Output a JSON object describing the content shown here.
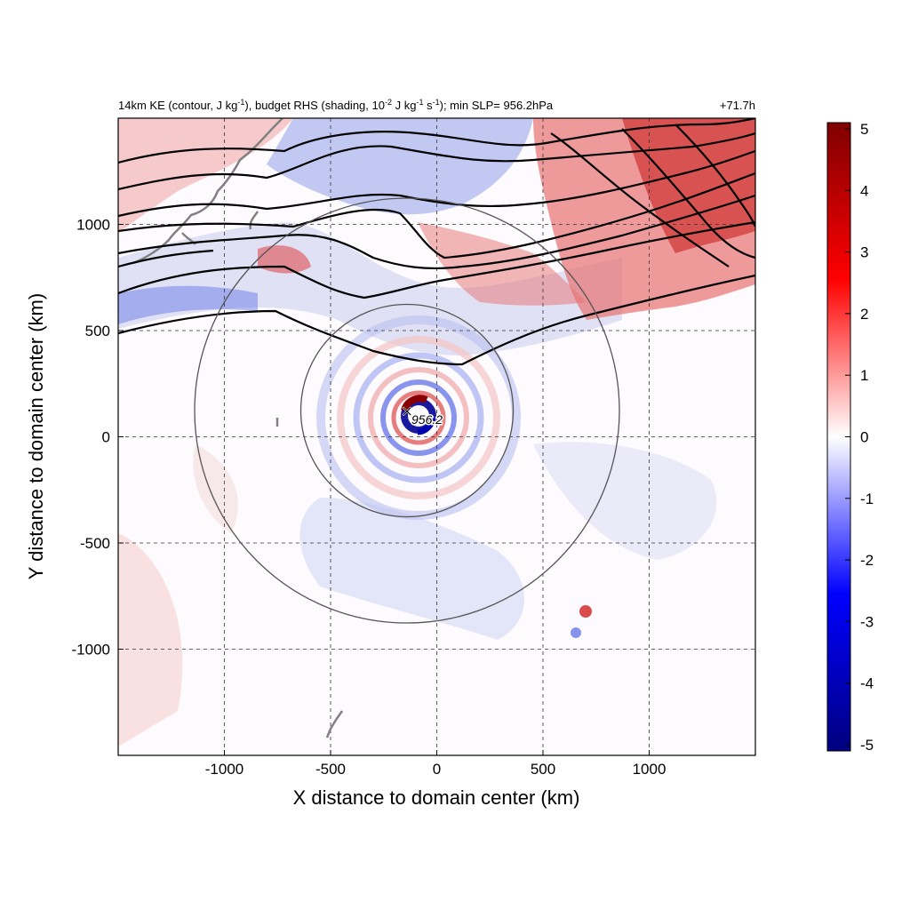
{
  "chart_data": {
    "type": "heatmap",
    "title_left": "14km KE (contour, J kg$-1$), budget RHS (shading, 10$-2$ J kg$-1$ s$-1$); min SLP= 956.2hPa",
    "title_right": "+71.7h",
    "xlabel": "X distance to domain center (km)",
    "ylabel": "Y distance to domain center (km)",
    "xlim": [
      -1500,
      1500
    ],
    "ylim": [
      -1500,
      1500
    ],
    "x_ticks": [
      -1000,
      -500,
      0,
      500,
      1000
    ],
    "y_ticks": [
      -1000,
      -500,
      0,
      500,
      1000
    ],
    "grid": true,
    "colorbar": {
      "min": -5,
      "max": 5,
      "ticks": [
        5,
        4,
        3,
        2,
        1,
        0,
        -1,
        -2,
        -3,
        -4,
        -5
      ],
      "colors": [
        "#00007f",
        "#0000ff",
        "#ffffff",
        "#ff0000",
        "#7f0000"
      ]
    },
    "center_marker": {
      "x": -140,
      "y": 130,
      "label": "956.2"
    },
    "range_circles_km": [
      500,
      1000
    ],
    "contour_color": "#000000",
    "coastline_color": "#808080"
  }
}
